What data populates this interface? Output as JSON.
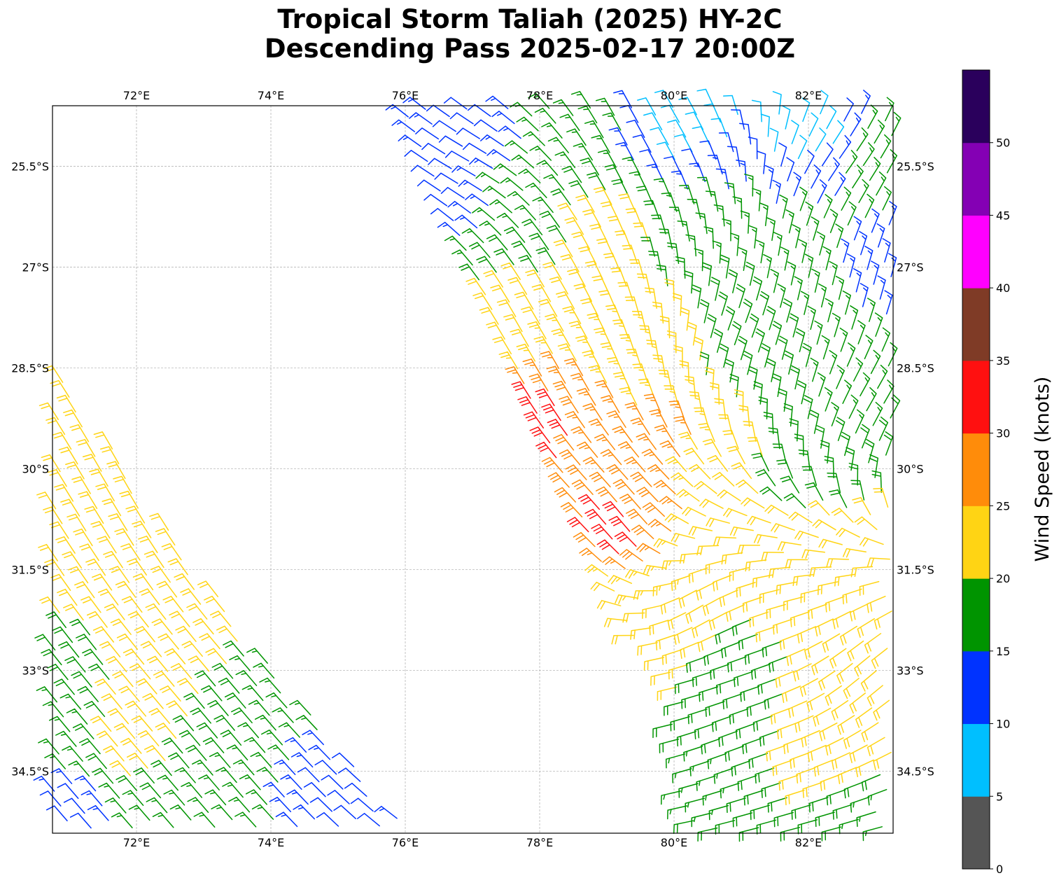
{
  "chart_data": {
    "type": "wind-barb-map",
    "title_line1": "Tropical Storm Taliah (2025) HY-2C",
    "title_line2": "Descending Pass 2025-02-17 20:00Z",
    "lon_range": [
      70.75,
      83.26
    ],
    "lat_range_south": [
      24.6,
      35.42
    ],
    "lon_ticks": [
      72,
      74,
      76,
      78,
      80,
      82
    ],
    "lon_tick_labels": [
      "72°E",
      "74°E",
      "76°E",
      "78°E",
      "80°E",
      "82°E"
    ],
    "lat_ticks": [
      25.5,
      27,
      28.5,
      30,
      31.5,
      33,
      34.5
    ],
    "lat_tick_labels": [
      "25.5°S",
      "27°S",
      "28.5°S",
      "30°S",
      "31.5°S",
      "33°S",
      "34.5°S"
    ],
    "grid": true,
    "colorbar": {
      "label": "Wind Speed (knots)",
      "ticks": [
        0,
        5,
        10,
        15,
        20,
        25,
        30,
        35,
        40,
        45,
        50
      ],
      "tick_labels": [
        "0",
        "5",
        "10",
        "15",
        "20",
        "25",
        "30",
        "35",
        "40",
        "45",
        "50"
      ],
      "max": 55,
      "colors": [
        "#555555",
        "#00bfff",
        "#0033ff",
        "#009400",
        "#ffd414",
        "#ff8c0a",
        "#ff1010",
        "#7f3b26",
        "#ff00ff",
        "#8400b4",
        "#2a005c"
      ]
    },
    "speed_anchors_kt": [
      [
        77,
        25,
        12
      ],
      [
        78.5,
        25,
        17
      ],
      [
        80.2,
        25,
        8
      ],
      [
        82,
        25,
        8
      ],
      [
        83,
        25.5,
        17
      ],
      [
        76.5,
        26,
        12
      ],
      [
        78,
        26,
        17
      ],
      [
        79,
        26.5,
        22
      ],
      [
        80.5,
        26.5,
        17
      ],
      [
        82,
        27,
        17
      ],
      [
        83,
        27,
        13
      ],
      [
        77.5,
        28,
        22
      ],
      [
        79.5,
        28.5,
        23
      ],
      [
        81,
        28.5,
        18
      ],
      [
        82.5,
        29,
        17
      ],
      [
        78,
        29.4,
        32
      ],
      [
        79,
        29.5,
        27
      ],
      [
        80,
        29.6,
        27
      ],
      [
        80.6,
        30,
        22
      ],
      [
        82,
        30,
        18
      ],
      [
        79.2,
        30.9,
        32
      ],
      [
        79.6,
        30.5,
        28
      ],
      [
        80.6,
        31,
        22
      ],
      [
        82.5,
        31.5,
        22
      ],
      [
        79,
        32,
        22
      ],
      [
        80,
        32.5,
        21
      ],
      [
        81,
        33,
        18
      ],
      [
        82.5,
        33,
        22
      ],
      [
        80.5,
        34.5,
        17
      ],
      [
        82.5,
        34.3,
        22
      ],
      [
        83,
        35,
        17
      ],
      [
        71,
        29,
        22
      ],
      [
        72,
        31,
        22
      ],
      [
        73,
        32.5,
        22
      ],
      [
        74,
        33,
        17
      ],
      [
        75.2,
        34.8,
        12
      ],
      [
        72,
        34,
        22
      ],
      [
        71,
        34,
        17
      ],
      [
        71,
        35.2,
        12
      ],
      [
        73,
        35,
        17
      ]
    ],
    "direction_anchors_from_deg": [
      [
        77,
        25.5,
        300
      ],
      [
        80,
        25,
        330
      ],
      [
        82.5,
        25.5,
        35
      ],
      [
        81,
        28,
        20
      ],
      [
        83,
        29,
        30
      ],
      [
        78,
        28,
        330
      ],
      [
        79.3,
        30.8,
        320
      ],
      [
        80.5,
        32,
        240
      ],
      [
        81,
        34,
        250
      ],
      [
        83,
        33,
        230
      ],
      [
        72,
        30,
        330
      ],
      [
        73,
        34,
        320
      ]
    ]
  }
}
